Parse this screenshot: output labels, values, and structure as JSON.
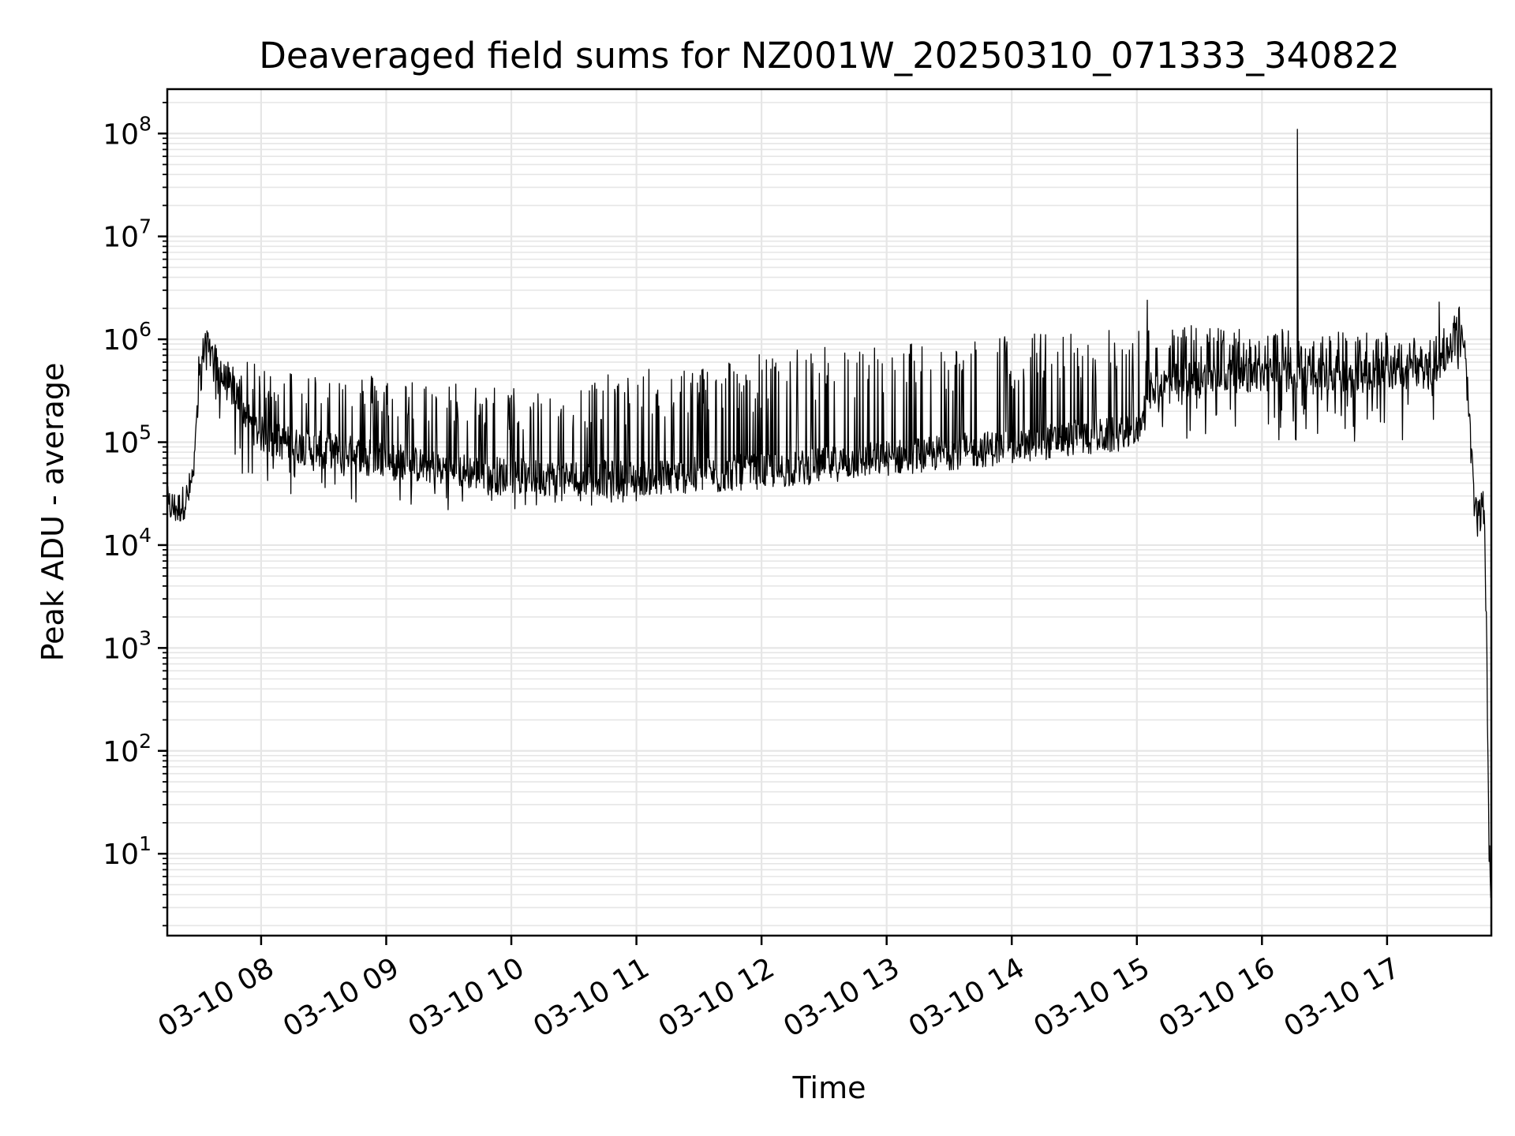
{
  "chart_data": {
    "type": "line",
    "title": "Deaveraged field sums for NZ001W_20250310_071333_340822",
    "xlabel": "Time",
    "ylabel": "Peak ADU - average",
    "yscale": "log",
    "grid": true,
    "line_color": "#000000",
    "grid_color": "#e6e6e6",
    "xlim": [
      "03-10 07:15",
      "03-10 17:50"
    ],
    "ylim": [
      1.6,
      270000000.0
    ],
    "x_ticks": [
      "03-10 08",
      "03-10 09",
      "03-10 10",
      "03-10 11",
      "03-10 12",
      "03-10 13",
      "03-10 14",
      "03-10 15",
      "03-10 16",
      "03-10 17"
    ],
    "y_ticks": [
      {
        "value": 10,
        "base": "10",
        "exp": "1"
      },
      {
        "value": 100,
        "base": "10",
        "exp": "2"
      },
      {
        "value": 1000,
        "base": "10",
        "exp": "3"
      },
      {
        "value": 10000,
        "base": "10",
        "exp": "4"
      },
      {
        "value": 100000,
        "base": "10",
        "exp": "5"
      },
      {
        "value": 1000000,
        "base": "10",
        "exp": "6"
      },
      {
        "value": 10000000,
        "base": "10",
        "exp": "7"
      },
      {
        "value": 100000000,
        "base": "10",
        "exp": "8"
      }
    ],
    "series": [
      {
        "x": [
          "07:15",
          "07:20",
          "07:25",
          "07:28",
          "07:30",
          "07:33",
          "07:36",
          "07:40",
          "07:45",
          "07:50",
          "07:55",
          "08:00",
          "08:10",
          "08:20",
          "08:30",
          "08:40",
          "08:50",
          "09:00",
          "09:15",
          "09:30",
          "09:45",
          "10:00",
          "10:15",
          "10:30",
          "10:45",
          "11:00",
          "11:15",
          "11:30",
          "11:45",
          "12:00",
          "12:15",
          "12:30",
          "12:45",
          "13:00",
          "13:15",
          "13:30",
          "13:45",
          "14:00",
          "14:15",
          "14:30",
          "14:45",
          "15:00",
          "15:05",
          "15:10",
          "15:20",
          "15:30",
          "15:45",
          "16:00",
          "16:15",
          "16:30",
          "16:45",
          "17:00",
          "17:10",
          "17:20",
          "17:23",
          "17:24",
          "17:25",
          "17:30",
          "17:35",
          "17:38",
          "17:40",
          "17:42",
          "17:44",
          "17:46",
          "17:47",
          "17:48",
          "17:49",
          "17:50"
        ],
        "y_base": [
          25000,
          22000,
          30000,
          60000,
          300000,
          1000000,
          800000,
          450000,
          350000,
          250000,
          150000,
          120000,
          100000,
          90000,
          85000,
          80000,
          75000,
          70000,
          60000,
          55000,
          50000,
          48000,
          45000,
          45000,
          45000,
          45000,
          46000,
          48000,
          50000,
          52000,
          55000,
          60000,
          65000,
          70000,
          75000,
          80000,
          85000,
          90000,
          100000,
          110000,
          115000,
          120000,
          300000,
          350000,
          400000,
          420000,
          450000,
          450000,
          460000,
          460000,
          470000,
          480000,
          490000,
          500000,
          520000,
          520000,
          600000,
          800000,
          1200000,
          500000,
          100000,
          20000,
          18000,
          25000,
          10000,
          500,
          10,
          4
        ],
        "y_upper": [
          25000,
          25000,
          30000,
          60000,
          1000000,
          1600000,
          900000,
          700000,
          600000,
          600000,
          600000,
          550000,
          550000,
          500000,
          500000,
          500000,
          480000,
          450000,
          420000,
          400000,
          380000,
          350000,
          350000,
          400000,
          450000,
          500000,
          550000,
          600000,
          700000,
          750000,
          800000,
          850000,
          900000,
          950000,
          1000000,
          1050000,
          1100000,
          1150000,
          1200000,
          1200000,
          1250000,
          1300000,
          1300000,
          1300000,
          1350000,
          1400000,
          1350000,
          1300000,
          1250000,
          1250000,
          1200000,
          1200000,
          1200000,
          1200000,
          1200000,
          1200000,
          1200000,
          1500000,
          2200000,
          800000,
          150000,
          30000,
          28000,
          30000,
          15000,
          700,
          12,
          4
        ],
        "y_lower": [
          22000,
          16000,
          25000,
          40000,
          100000,
          400000,
          300000,
          150000,
          80000,
          50000,
          35000,
          30000,
          30000,
          28000,
          27000,
          26000,
          25000,
          24000,
          23000,
          22000,
          22000,
          22000,
          22000,
          23000,
          24000,
          25000,
          27000,
          30000,
          33000,
          36000,
          40000,
          45000,
          50000,
          55000,
          60000,
          65000,
          70000,
          75000,
          80000,
          85000,
          90000,
          95000,
          100000,
          100000,
          100000,
          100000,
          100000,
          100000,
          100000,
          100000,
          100000,
          100000,
          100000,
          110000,
          150000,
          200000,
          300000,
          400000,
          500000,
          300000,
          50000,
          12000,
          10000,
          18000,
          5000,
          300,
          8,
          4
        ]
      }
    ],
    "spikes": [
      {
        "x": "16:17",
        "y": 110000000
      },
      {
        "x": "17:25",
        "y": 2300000
      },
      {
        "x": "15:05",
        "y": 2400000
      }
    ]
  }
}
